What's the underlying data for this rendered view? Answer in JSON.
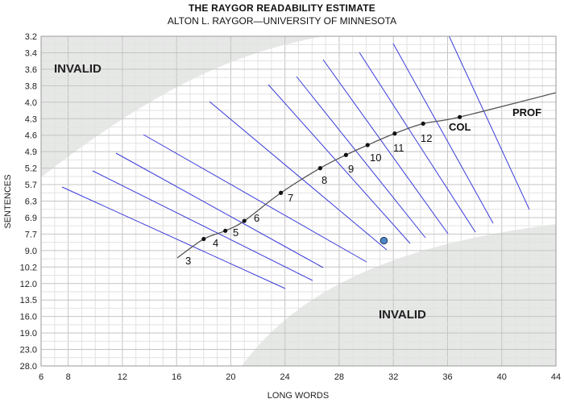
{
  "header": {
    "title": "THE RAYGOR READABILITY ESTIMATE",
    "subtitle": "ALTON L. RAYGOR—UNIVERSITY OF MINNESOTA"
  },
  "chart_data": {
    "type": "scatter",
    "title": "THE RAYGOR READABILITY ESTIMATE",
    "subtitle": "ALTON L. RAYGOR—UNIVERSITY OF MINNESOTA",
    "xlabel": "LONG WORDS",
    "ylabel": "SENTENCES",
    "xlim": [
      6,
      44
    ],
    "x_ticks": [
      6,
      8,
      12,
      16,
      20,
      24,
      28,
      32,
      36,
      40,
      44
    ],
    "y_ticks": [
      "3.2",
      "3.4",
      "3.6",
      "3.8",
      "4.0",
      "4.3",
      "4.6",
      "4.9",
      "5.2",
      "5.7",
      "6.3",
      "6.9",
      "7.7",
      "9.0",
      "10.2",
      "12.0",
      "13.5",
      "16.0",
      "19.0",
      "23.0",
      "28.0"
    ],
    "grid": true,
    "region_labels": [
      "INVALID",
      "INVALID"
    ],
    "grade_curve": [
      {
        "label": "3",
        "x": 18.0,
        "y_index": 12.3
      },
      {
        "label": "4",
        "x": 19.6,
        "y_index": 11.8
      },
      {
        "label": "5",
        "x": 21.0,
        "y_index": 11.2
      },
      {
        "label": "6",
        "x": 23.7,
        "y_index": 9.5
      },
      {
        "label": "7",
        "x": 26.6,
        "y_index": 8.0
      },
      {
        "label": "8",
        "x": 28.5,
        "y_index": 7.2
      },
      {
        "label": "9",
        "x": 30.1,
        "y_index": 6.6
      },
      {
        "label": "10",
        "x": 32.1,
        "y_index": 5.9
      },
      {
        "label": "11",
        "x": 34.2,
        "y_index": 5.3
      },
      {
        "label": "12",
        "x": 36.9,
        "y_index": 4.9
      }
    ],
    "level_labels": [
      "3",
      "4",
      "5",
      "6",
      "7",
      "8",
      "9",
      "10",
      "11",
      "12",
      "COL",
      "PROF"
    ],
    "sample_point": {
      "x": 31.3,
      "y_index": 12.4
    }
  }
}
